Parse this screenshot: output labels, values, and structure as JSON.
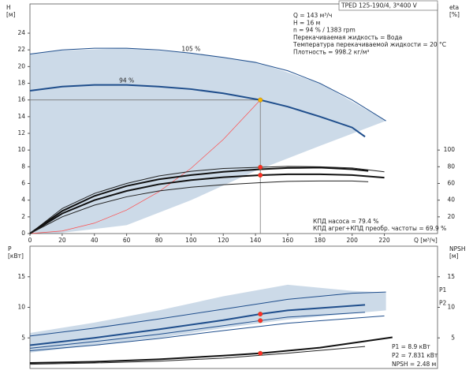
{
  "chart_data": [
    {
      "type": "line",
      "title": "TPED 125-190/4, 3*400 V",
      "ylabel": "H",
      "yunit": "[м]",
      "y2label": "eta",
      "y2unit": "[%]",
      "xlabel": "Q [м³/ч]",
      "xlim": [
        0,
        253
      ],
      "ylim": [
        0,
        27.5
      ],
      "y2lim": [
        0,
        275
      ],
      "xticks": [
        0,
        20,
        40,
        60,
        80,
        100,
        120,
        140,
        160,
        180,
        200,
        220
      ],
      "yticks": [
        0,
        2,
        4,
        6,
        8,
        10,
        12,
        14,
        16,
        18,
        20,
        22,
        24
      ],
      "y2ticks": [
        20,
        40,
        60,
        80,
        100
      ],
      "band": {
        "color": "#c3d3e4",
        "x": [
          0,
          16,
          60,
          100,
          140,
          180,
          221
        ],
        "upper": [
          21.5,
          21.9,
          22.2,
          21.6,
          20.6,
          18.0,
          13.5
        ],
        "lower": [
          0,
          0,
          1,
          4,
          7.5,
          10.5,
          13.5
        ]
      },
      "series": [
        {
          "name": "105 %",
          "color": "#1f4e8c",
          "line_width": 1,
          "x": [
            0,
            20,
            40,
            60,
            80,
            100,
            120,
            140,
            160,
            180,
            200,
            221
          ],
          "values": [
            21.5,
            22.0,
            22.2,
            22.2,
            22.0,
            21.6,
            21.1,
            20.5,
            19.5,
            18.0,
            16.0,
            13.5
          ]
        },
        {
          "name": "94 %",
          "color": "#1f4e8c",
          "line_width": 2,
          "x": [
            0,
            20,
            40,
            60,
            80,
            100,
            120,
            143,
            160,
            180,
            200,
            208
          ],
          "values": [
            17.1,
            17.6,
            17.8,
            17.8,
            17.6,
            17.3,
            16.8,
            16.0,
            15.2,
            14.0,
            12.7,
            11.6
          ]
        },
        {
          "color": "#ff4d4d",
          "line_width": 0.7,
          "x": [
            0,
            20,
            40,
            60,
            80,
            100,
            120,
            143
          ],
          "values": [
            0,
            0.31,
            1.25,
            2.82,
            5.0,
            7.82,
            11.27,
            16
          ]
        },
        {
          "color": "#222222",
          "line_width": 1,
          "axis": "y2",
          "x": [
            0,
            20,
            40,
            60,
            80,
            100,
            120,
            143,
            160,
            180,
            200,
            220
          ],
          "values": [
            0,
            30,
            48,
            60,
            69,
            74.5,
            78,
            79.4,
            80.5,
            80,
            78.5,
            74
          ]
        },
        {
          "color": "#111111",
          "line_width": 2,
          "axis": "y2",
          "x": [
            0,
            20,
            40,
            60,
            80,
            100,
            120,
            143,
            160,
            180,
            200,
            210
          ],
          "values": [
            0,
            27,
            45,
            57,
            65,
            70,
            74,
            77,
            78.5,
            79,
            77,
            75
          ]
        },
        {
          "color": "#111111",
          "line_width": 2,
          "axis": "y2",
          "x": [
            0,
            20,
            40,
            60,
            80,
            100,
            120,
            143,
            160,
            180,
            200,
            220
          ],
          "values": [
            0,
            24,
            40,
            51,
            59,
            64,
            67.5,
            69.9,
            71,
            71,
            70,
            67
          ]
        },
        {
          "color": "#222222",
          "line_width": 1,
          "axis": "y2",
          "x": [
            0,
            20,
            40,
            60,
            80,
            100,
            120,
            143,
            160,
            180,
            200,
            210
          ],
          "values": [
            0,
            20,
            34,
            44,
            51,
            55.5,
            58.5,
            61,
            62.5,
            63,
            63,
            62
          ]
        }
      ],
      "points": [
        {
          "x": 143,
          "y": 16,
          "color": "#f5b800",
          "guides": true
        },
        {
          "x": 143,
          "y": 79.4,
          "axis": "y2",
          "color": "#ff2a2a"
        },
        {
          "x": 143,
          "y": 69.9,
          "axis": "y2",
          "color": "#ff2a2a"
        }
      ],
      "info": [
        "Q = 143 м³/ч",
        "H = 16 м",
        "n = 94 % / 1383 rpm",
        "Перекачиваемая жидкость = Вода",
        "Температура перекачиваемой жидкости = 20 °C",
        "Плотность = 998.2 кг/м³"
      ],
      "notes": [
        "КПД насоса = 79.4 %",
        "КПД агрег+КПД преобр. частоты = 69.9 %"
      ]
    },
    {
      "type": "line",
      "ylabel": "P",
      "yunit": "[кВт]",
      "y2label": "NPSH",
      "y2unit": "[м]",
      "xlim": [
        0,
        253
      ],
      "ylim": [
        0,
        20
      ],
      "y2lim": [
        0,
        20
      ],
      "yticks": [
        5,
        10,
        15
      ],
      "y2ticks": [
        5,
        10,
        15
      ],
      "band": {
        "color": "#c3d3e4",
        "x": [
          0,
          40,
          80,
          120,
          160,
          200,
          221
        ],
        "upper": [
          5.8,
          7.5,
          9.5,
          11.8,
          13.7,
          12.7,
          12.4
        ],
        "lower": [
          2.6,
          3.8,
          5.0,
          6.6,
          8.0,
          9.0,
          9.5
        ]
      },
      "series": [
        {
          "name": "P1",
          "color": "#1f4e8c",
          "line_width": 1,
          "x": [
            0,
            40,
            80,
            120,
            160,
            200,
            221
          ],
          "values": [
            5.3,
            6.6,
            8.1,
            9.7,
            11.3,
            12.3,
            12.5
          ]
        },
        {
          "name": "P2",
          "color": "#1f4e8c",
          "line_width": 2,
          "x": [
            0,
            40,
            80,
            120,
            143,
            160,
            208
          ],
          "values": [
            3.8,
            5.0,
            6.4,
            7.9,
            8.9,
            9.5,
            10.4
          ]
        },
        {
          "color": "#1f4e8c",
          "line_width": 1,
          "x": [
            0,
            40,
            80,
            120,
            143,
            160,
            208
          ],
          "values": [
            3.3,
            4.4,
            5.6,
            7.0,
            7.831,
            8.4,
            9.2
          ]
        },
        {
          "color": "#1f4e8c",
          "line_width": 1,
          "x": [
            0,
            40,
            80,
            120,
            160,
            220
          ],
          "values": [
            2.9,
            3.8,
            4.9,
            6.2,
            7.4,
            8.6
          ]
        },
        {
          "color": "#111111",
          "line_width": 2,
          "axis": "y2",
          "x": [
            0,
            40,
            80,
            120,
            143,
            180,
            225
          ],
          "values": [
            0.9,
            1.1,
            1.5,
            2.1,
            2.48,
            3.4,
            5.1
          ]
        },
        {
          "color": "#222222",
          "line_width": 1,
          "axis": "y2",
          "x": [
            0,
            40,
            80,
            120,
            160,
            208
          ],
          "values": [
            0.7,
            0.9,
            1.2,
            1.7,
            2.5,
            3.6
          ]
        }
      ],
      "points": [
        {
          "x": 143,
          "y": 8.9,
          "color": "#ff2a2a"
        },
        {
          "x": 143,
          "y": 7.831,
          "color": "#ff2a2a"
        },
        {
          "x": 143,
          "y": 2.48,
          "axis": "y2",
          "color": "#ff2a2a"
        }
      ],
      "notes": [
        "P1 = 8.9 кВт",
        "P2 = 7.831 кВт",
        "NPSH = 2.48 м"
      ]
    }
  ]
}
